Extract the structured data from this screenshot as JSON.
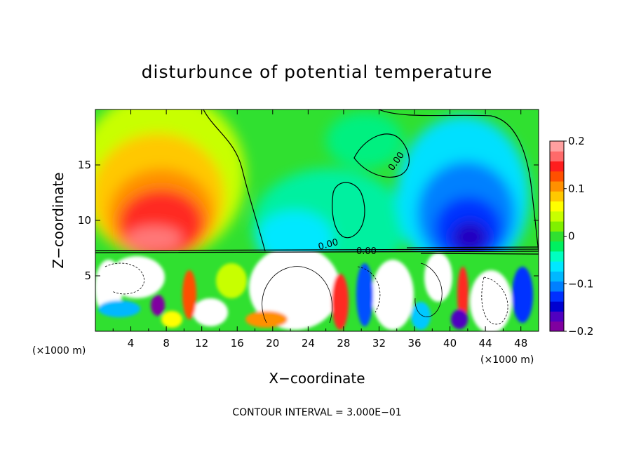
{
  "chart_data": {
    "type": "heatmap",
    "title": "disturbunce of potential temperature",
    "xlabel": "X−coordinate",
    "ylabel": "Z−coordinate",
    "x_unit_left": "(×1000 m)",
    "x_unit_right": "(×1000 m)",
    "xlim": [
      0,
      50
    ],
    "ylim": [
      0,
      20
    ],
    "x_ticks": [
      4,
      8,
      12,
      16,
      20,
      24,
      28,
      32,
      36,
      40,
      44,
      48
    ],
    "y_ticks": [
      5,
      10,
      15
    ],
    "colorbar": {
      "min": -0.2,
      "max": 0.2,
      "tick_values": [
        0.2,
        0.1,
        0,
        -0.1,
        -0.2
      ],
      "tick_labels": [
        "0.2",
        "0.1",
        "0",
        "−0.1",
        "−0.2"
      ],
      "colors": [
        "#8000a0",
        "#5000c0",
        "#0000d0",
        "#0030ff",
        "#0080ff",
        "#00b8ff",
        "#00e8ff",
        "#00ffc0",
        "#00f060",
        "#30e030",
        "#80f000",
        "#c8ff00",
        "#ffff00",
        "#ffc800",
        "#ff9000",
        "#ff5000",
        "#ff1e1e",
        "#ff6a6a",
        "#ffa0a0"
      ]
    },
    "contour_labels": [
      "0.00",
      "0.00",
      "0.00"
    ],
    "contour_interval_label": "CONTOUR INTERVAL = 3.000E−01"
  }
}
